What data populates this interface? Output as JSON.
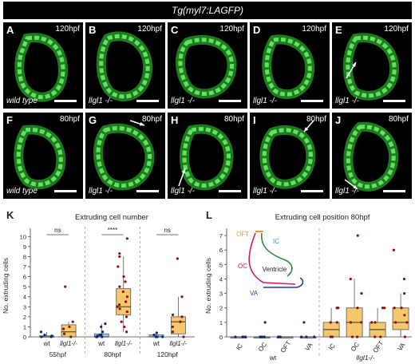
{
  "banner": "Tg(myl7:LAGFP)",
  "panels": [
    {
      "letter": "A",
      "time": "120hpf",
      "geno": "wild type"
    },
    {
      "letter": "B",
      "time": "120hpf",
      "geno": "llgl1 -/-"
    },
    {
      "letter": "C",
      "time": "120hpf",
      "geno": "llgl1 -/-"
    },
    {
      "letter": "D",
      "time": "120hpf",
      "geno": "llgl1 -/-"
    },
    {
      "letter": "E",
      "time": "120hpf",
      "geno": "llgl1 -/-"
    },
    {
      "letter": "F",
      "time": "80hpf",
      "geno": "wild type"
    },
    {
      "letter": "G",
      "time": "80hpf",
      "geno": "llgl1 -/-"
    },
    {
      "letter": "H",
      "time": "80hpf",
      "geno": "llgl1 -/-"
    },
    {
      "letter": "I",
      "time": "80hpf",
      "geno": "llgl1 -/-"
    },
    {
      "letter": "J",
      "time": "80hpf",
      "geno": "llgl1 -/-"
    }
  ],
  "plotK": {
    "letter": "K",
    "title": "Extruding cell number",
    "ylabel": "No. extruding cells",
    "chart_data": {
      "type": "box",
      "yticks": [
        0,
        1,
        2,
        3,
        4,
        5,
        6,
        7,
        8,
        9,
        10
      ],
      "ylim": [
        0,
        10.5
      ],
      "groups": [
        {
          "time": "55hpf",
          "sig": "ns",
          "boxes": [
            {
              "label": "wt",
              "q1": 0,
              "median": 0,
              "q3": 0.1,
              "min": 0,
              "max": 0.5,
              "points": [
                0,
                0,
                0.2,
                0.5,
                0.1
              ],
              "color": "#0b2a6f"
            },
            {
              "label": "llgl1-/-",
              "q1": 0,
              "median": 0.5,
              "q3": 1.2,
              "min": 0,
              "max": 1.5,
              "points": [
                0,
                0.3,
                0.8,
                1,
                1.5,
                5
              ],
              "color": "#8a0e12"
            }
          ]
        },
        {
          "time": "80hpf",
          "sig": "****",
          "boxes": [
            {
              "label": "wt",
              "q1": 0,
              "median": 0,
              "q3": 0.3,
              "min": 0,
              "max": 1.3,
              "points": [
                0,
                0,
                0,
                0.2,
                0.5,
                1,
                1.3,
                0.1,
                0.2
              ],
              "color": "#0b2a6f"
            },
            {
              "label": "llgl1-/-",
              "q1": 2.2,
              "median": 3,
              "q3": 4.8,
              "min": 0.5,
              "max": 8,
              "points": [
                0.5,
                1,
                1.5,
                2,
                2.5,
                2.8,
                3,
                3.2,
                3.5,
                4,
                4.5,
                5,
                5.5,
                6,
                7,
                8,
                9.8,
                8.3
              ],
              "color": "#8a0e12"
            }
          ]
        },
        {
          "time": "120hpf",
          "sig": "ns",
          "boxes": [
            {
              "label": "wt",
              "q1": 0,
              "median": 0,
              "q3": 0.2,
              "min": 0,
              "max": 0.4,
              "points": [
                0,
                0,
                0,
                0.2,
                0.4
              ],
              "color": "#0b2a6f"
            },
            {
              "label": "llgl1-/-",
              "q1": 0.3,
              "median": 1.5,
              "q3": 2,
              "min": 0,
              "max": 4,
              "points": [
                0,
                0.5,
                1,
                1.5,
                2,
                2.2,
                4,
                7.8
              ],
              "color": "#8a0e12"
            }
          ]
        }
      ]
    }
  },
  "plotL": {
    "letter": "L",
    "title": "Extruding cell position 80hpf",
    "ylabel": "No. extruding cells",
    "inset": {
      "oft": "OFT",
      "ic": "IC",
      "oc": "OC",
      "ventricle": "Ventricle",
      "va": "VA"
    },
    "chart_data": {
      "type": "box",
      "yticks": [
        0,
        1,
        2,
        3,
        4,
        5,
        6,
        7
      ],
      "ylim": [
        0,
        7.5
      ],
      "groups": [
        {
          "name": "wt",
          "boxes": [
            {
              "label": "IC",
              "q1": 0,
              "median": 0,
              "q3": 0,
              "min": 0,
              "max": 0,
              "points": [
                0,
                0,
                0,
                0
              ],
              "color": "#0b2a6f"
            },
            {
              "label": "OC",
              "q1": 0,
              "median": 0,
              "q3": 0,
              "min": 0,
              "max": 0,
              "points": [
                0,
                0,
                0,
                1
              ],
              "color": "#0b2a6f"
            },
            {
              "label": "OFT",
              "q1": 0,
              "median": 0,
              "q3": 0,
              "min": 0,
              "max": 0,
              "points": [
                0,
                0,
                0
              ],
              "color": "#0b2a6f"
            },
            {
              "label": "VA",
              "q1": 0,
              "median": 0,
              "q3": 0,
              "min": 0,
              "max": 0,
              "points": [
                0,
                0,
                0,
                1
              ],
              "color": "#0b2a6f"
            }
          ]
        },
        {
          "name": "llgl1-/-",
          "boxes": [
            {
              "label": "IC",
              "q1": 0,
              "median": 0.5,
              "q3": 1,
              "min": 0,
              "max": 2,
              "points": [
                0,
                0,
                1,
                1,
                2,
                2
              ],
              "color": "#8a0e12"
            },
            {
              "label": "OC",
              "q1": 0,
              "median": 1,
              "q3": 2,
              "min": 0,
              "max": 4,
              "points": [
                0,
                0,
                1,
                1,
                2,
                3,
                4,
                7
              ],
              "color": "#8a0e12"
            },
            {
              "label": "OFT",
              "q1": 0,
              "median": 0.5,
              "q3": 1,
              "min": 0,
              "max": 2,
              "points": [
                0,
                0,
                1,
                1,
                2,
                2
              ],
              "color": "#8a0e12"
            },
            {
              "label": "VA",
              "q1": 0.5,
              "median": 1,
              "q3": 2,
              "min": 0,
              "max": 3,
              "points": [
                0,
                1,
                1,
                1.5,
                2,
                2,
                3,
                4,
                6
              ],
              "color": "#8a0e12"
            }
          ]
        }
      ]
    }
  }
}
